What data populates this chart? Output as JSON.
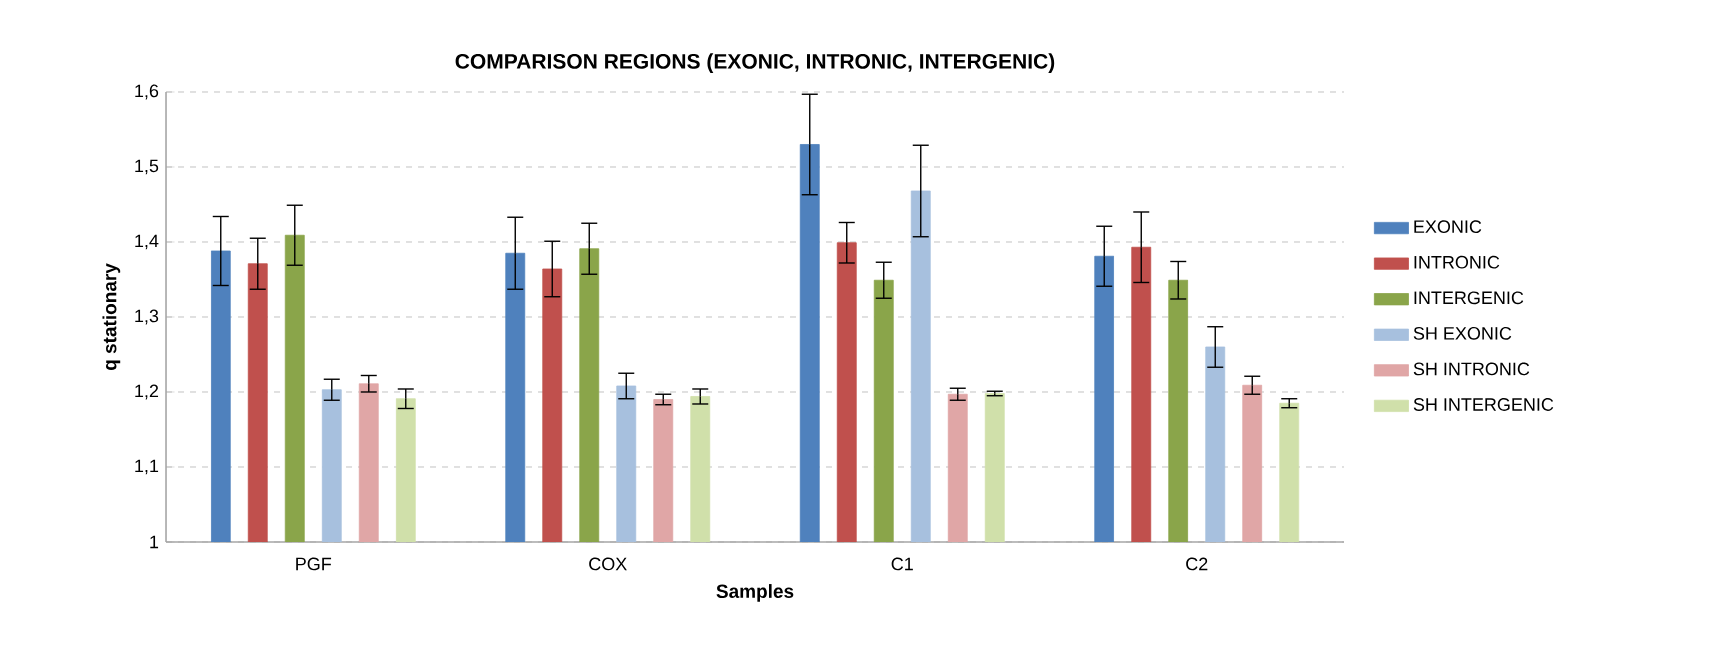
{
  "chart_data": {
    "type": "bar",
    "title": "COMPARISON REGIONS (EXONIC, INTRONIC, INTERGENIC)",
    "xlabel": "Samples",
    "ylabel": "q stationary",
    "categories": [
      "PGF",
      "COX",
      "C1",
      "C2"
    ],
    "series": [
      {
        "name": "EXONIC",
        "color": "#4f81bd",
        "values": [
          1.388,
          1.385,
          1.53,
          1.381
        ],
        "errors": [
          0.046,
          0.048,
          0.067,
          0.04
        ]
      },
      {
        "name": "INTRONIC",
        "color": "#c0504d",
        "values": [
          1.371,
          1.364,
          1.399,
          1.393
        ],
        "errors": [
          0.034,
          0.037,
          0.027,
          0.047
        ]
      },
      {
        "name": "INTERGENIC",
        "color": "#8aa54a",
        "values": [
          1.409,
          1.391,
          1.349,
          1.349
        ],
        "errors": [
          0.04,
          0.034,
          0.024,
          0.025
        ]
      },
      {
        "name": "SH EXONIC",
        "color": "#a7c0de",
        "values": [
          1.203,
          1.208,
          1.468,
          1.26
        ],
        "errors": [
          0.014,
          0.017,
          0.061,
          0.027
        ]
      },
      {
        "name": "SH INTRONIC",
        "color": "#e0a6a6",
        "values": [
          1.211,
          1.19,
          1.197,
          1.209
        ],
        "errors": [
          0.011,
          0.007,
          0.008,
          0.012
        ]
      },
      {
        "name": "SH INTERGENIC",
        "color": "#d0e0aa",
        "values": [
          1.191,
          1.194,
          1.198,
          1.185
        ],
        "errors": [
          0.013,
          0.01,
          0.003,
          0.006
        ]
      }
    ],
    "ylim": [
      1,
      1.6
    ],
    "yticks": [
      1,
      {
        "value": 1.1,
        "label": "1,1"
      },
      {
        "value": 1.2,
        "label": "1,2"
      },
      {
        "value": 1.3,
        "label": "1,3"
      },
      {
        "value": 1.4,
        "label": "1,4"
      },
      {
        "value": 1.5,
        "label": "1,5"
      },
      {
        "value": 1.6,
        "label": "1,6"
      }
    ],
    "grid": "y",
    "legend": "right"
  }
}
